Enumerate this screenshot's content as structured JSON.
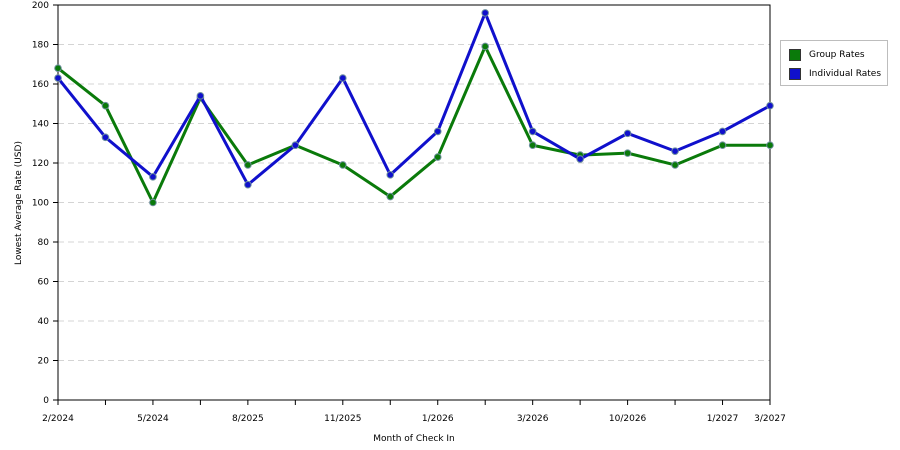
{
  "chart_data": {
    "type": "line",
    "title": "",
    "xlabel": "Month of Check In",
    "ylabel": "Lowest Average Rate (USD)",
    "ylim": [
      0,
      200
    ],
    "yticks": [
      0,
      20,
      40,
      60,
      80,
      100,
      120,
      140,
      160,
      180,
      200
    ],
    "grid": true,
    "legend_position": "top-right",
    "x_tick_labels": [
      {
        "i": 0,
        "label": "2/2024"
      },
      {
        "i": 2,
        "label": "5/2024"
      },
      {
        "i": 4,
        "label": "8/2025"
      },
      {
        "i": 6,
        "label": "11/2025"
      },
      {
        "i": 8,
        "label": "1/2026"
      },
      {
        "i": 10,
        "label": "3/2026"
      },
      {
        "i": 12,
        "label": "10/2026"
      },
      {
        "i": 14,
        "label": "1/2027"
      },
      {
        "i": 15,
        "label": "3/2027"
      }
    ],
    "series": [
      {
        "name": "Group Rates",
        "color": "#0a7a0a",
        "values": [
          168,
          149,
          100,
          153,
          119,
          129,
          119,
          103,
          123,
          179,
          129,
          124,
          125,
          119,
          129,
          129
        ]
      },
      {
        "name": "Individual Rates",
        "color": "#1010cc",
        "values": [
          163,
          133,
          113,
          154,
          109,
          129,
          163,
          114,
          136,
          196,
          136,
          122,
          135,
          126,
          136,
          149
        ]
      }
    ]
  }
}
